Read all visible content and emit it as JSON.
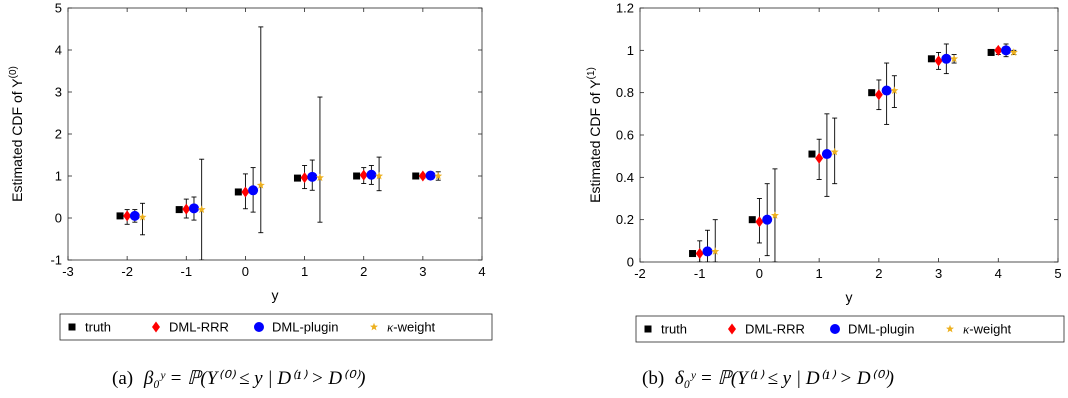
{
  "series_styles": [
    {
      "name": "truth",
      "color": "#000000",
      "marker": "square"
    },
    {
      "name": "DML-RRR",
      "color": "#ff0000",
      "marker": "diamond"
    },
    {
      "name": "DML-plugin",
      "color": "#0000ff",
      "marker": "circle"
    },
    {
      "name": "κ-weight",
      "color": "#edb120",
      "marker": "star"
    }
  ],
  "legend_kappa_symbol": "κ",
  "legend_kappa_rest": "-weight",
  "chart_data": [
    {
      "type": "scatter",
      "xlabel": "y",
      "ylabel": "Estimated CDF of Y",
      "ylabel_sup": "(0)",
      "xlim": [
        -3,
        4
      ],
      "ylim": [
        -1,
        5
      ],
      "xticks": [
        "-3",
        "-2",
        "-1",
        "0",
        "1",
        "2",
        "3",
        "4"
      ],
      "yticks": [
        "-1",
        "0",
        "1",
        "2",
        "3",
        "4",
        "5"
      ],
      "legend_position": "bottom",
      "caption_label": "(a)",
      "caption_formula": "β₀ʸ = ℙ(Y⁽⁰⁾ ≤ y | D⁽¹⁾ > D⁽⁰⁾)",
      "series": [
        {
          "name": "truth",
          "points": [
            {
              "x": -2,
              "y": 0.05
            },
            {
              "x": -1,
              "y": 0.2
            },
            {
              "x": 0,
              "y": 0.62
            },
            {
              "x": 1,
              "y": 0.95
            },
            {
              "x": 2,
              "y": 1.0
            },
            {
              "x": 3,
              "y": 1.0
            }
          ]
        },
        {
          "name": "DML-RRR",
          "points": [
            {
              "x": -2,
              "y": 0.05,
              "lo": -0.15,
              "hi": 0.2
            },
            {
              "x": -1,
              "y": 0.21,
              "lo": 0.0,
              "hi": 0.45
            },
            {
              "x": 0,
              "y": 0.62,
              "lo": 0.22,
              "hi": 1.05
            },
            {
              "x": 1,
              "y": 0.96,
              "lo": 0.7,
              "hi": 1.25
            },
            {
              "x": 2,
              "y": 1.02,
              "lo": 0.82,
              "hi": 1.2
            },
            {
              "x": 3,
              "y": 1.0,
              "lo": 0.95,
              "hi": 1.05
            }
          ]
        },
        {
          "name": "DML-plugin",
          "points": [
            {
              "x": -2,
              "y": 0.05,
              "lo": -0.1,
              "hi": 0.2
            },
            {
              "x": -1,
              "y": 0.23,
              "lo": -0.05,
              "hi": 0.5
            },
            {
              "x": 0,
              "y": 0.66,
              "lo": 0.14,
              "hi": 1.2
            },
            {
              "x": 1,
              "y": 0.98,
              "lo": 0.66,
              "hi": 1.38
            },
            {
              "x": 2,
              "y": 1.03,
              "lo": 0.8,
              "hi": 1.25
            },
            {
              "x": 3,
              "y": 1.01,
              "lo": 0.95,
              "hi": 1.08
            }
          ]
        },
        {
          "name": "κ-weight",
          "points": [
            {
              "x": -2,
              "y": 0.02,
              "lo": -0.4,
              "hi": 0.35
            },
            {
              "x": -1,
              "y": 0.2,
              "lo": -1.0,
              "hi": 1.4
            },
            {
              "x": 0,
              "y": 0.78,
              "lo": -0.35,
              "hi": 4.55
            },
            {
              "x": 1,
              "y": 0.96,
              "lo": -0.1,
              "hi": 2.88
            },
            {
              "x": 2,
              "y": 1.0,
              "lo": 0.65,
              "hi": 1.45
            },
            {
              "x": 3,
              "y": 1.0,
              "lo": 0.9,
              "hi": 1.1
            }
          ]
        }
      ]
    },
    {
      "type": "scatter",
      "xlabel": "y",
      "ylabel": "Estimated CDF of Y",
      "ylabel_sup": "(1)",
      "xlim": [
        -2,
        5
      ],
      "ylim": [
        0,
        1.2
      ],
      "xticks": [
        "-2",
        "-1",
        "0",
        "1",
        "2",
        "3",
        "4",
        "5"
      ],
      "yticks": [
        "0",
        "0.2",
        "0.4",
        "0.6",
        "0.8",
        "1",
        "1.2"
      ],
      "legend_position": "bottom",
      "caption_label": "(b)",
      "caption_formula": "δ₀ʸ = ℙ(Y⁽¹⁾ ≤ y | D⁽¹⁾ > D⁽⁰⁾)",
      "series": [
        {
          "name": "truth",
          "points": [
            {
              "x": -1,
              "y": 0.04
            },
            {
              "x": 0,
              "y": 0.2
            },
            {
              "x": 1,
              "y": 0.51
            },
            {
              "x": 2,
              "y": 0.8
            },
            {
              "x": 3,
              "y": 0.96
            },
            {
              "x": 4,
              "y": 0.99
            }
          ]
        },
        {
          "name": "DML-RRR",
          "points": [
            {
              "x": -1,
              "y": 0.04,
              "lo": 0.0,
              "hi": 0.1
            },
            {
              "x": 0,
              "y": 0.19,
              "lo": 0.09,
              "hi": 0.3
            },
            {
              "x": 1,
              "y": 0.49,
              "lo": 0.39,
              "hi": 0.58
            },
            {
              "x": 2,
              "y": 0.79,
              "lo": 0.72,
              "hi": 0.86
            },
            {
              "x": 3,
              "y": 0.95,
              "lo": 0.91,
              "hi": 0.99
            },
            {
              "x": 4,
              "y": 1.0,
              "lo": 0.98,
              "hi": 1.01
            }
          ]
        },
        {
          "name": "DML-plugin",
          "points": [
            {
              "x": -1,
              "y": 0.05,
              "lo": 0.0,
              "hi": 0.15
            },
            {
              "x": 0,
              "y": 0.2,
              "lo": 0.03,
              "hi": 0.37
            },
            {
              "x": 1,
              "y": 0.51,
              "lo": 0.31,
              "hi": 0.7
            },
            {
              "x": 2,
              "y": 0.81,
              "lo": 0.65,
              "hi": 0.94
            },
            {
              "x": 3,
              "y": 0.96,
              "lo": 0.89,
              "hi": 1.03
            },
            {
              "x": 4,
              "y": 1.0,
              "lo": 0.97,
              "hi": 1.03
            }
          ]
        },
        {
          "name": "κ-weight",
          "points": [
            {
              "x": -1,
              "y": 0.05,
              "lo": 0.0,
              "hi": 0.2
            },
            {
              "x": 0,
              "y": 0.22,
              "lo": 0.0,
              "hi": 0.44
            },
            {
              "x": 1,
              "y": 0.52,
              "lo": 0.37,
              "hi": 0.68
            },
            {
              "x": 2,
              "y": 0.81,
              "lo": 0.73,
              "hi": 0.88
            },
            {
              "x": 3,
              "y": 0.96,
              "lo": 0.94,
              "hi": 0.98
            },
            {
              "x": 4,
              "y": 0.99,
              "lo": 0.98,
              "hi": 1.0
            }
          ]
        }
      ]
    }
  ]
}
